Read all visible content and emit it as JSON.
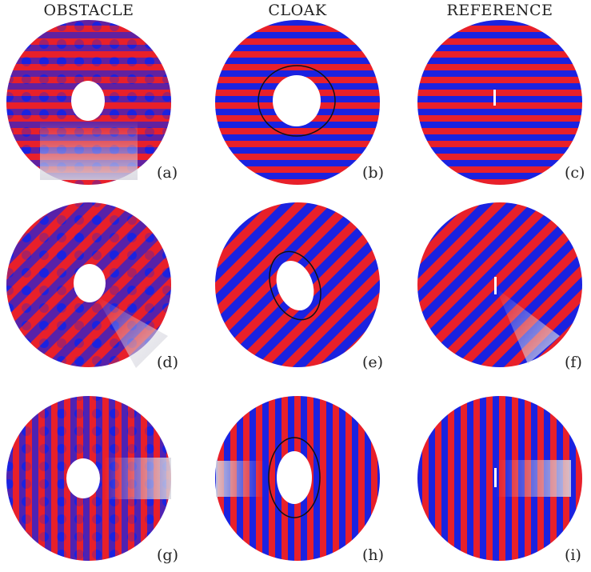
{
  "columns": [
    "OBSTACLE",
    "CLOAK",
    "REFERENCE"
  ],
  "colors": {
    "positive": "#e8202a",
    "negative": "#1a22e0",
    "neutral": "#d8d8e0",
    "outline": "#111111"
  },
  "panels": [
    {
      "label": "(a)",
      "column": "OBSTACLE",
      "wave": "horizontal"
    },
    {
      "label": "(b)",
      "column": "CLOAK",
      "wave": "horizontal"
    },
    {
      "label": "(c)",
      "column": "REFERENCE",
      "wave": "horizontal"
    },
    {
      "label": "(d)",
      "column": "OBSTACLE",
      "wave": "diagonal"
    },
    {
      "label": "(e)",
      "column": "CLOAK",
      "wave": "diagonal"
    },
    {
      "label": "(f)",
      "column": "REFERENCE",
      "wave": "diagonal"
    },
    {
      "label": "(g)",
      "column": "OBSTACLE",
      "wave": "vertical"
    },
    {
      "label": "(h)",
      "column": "CLOAK",
      "wave": "vertical"
    },
    {
      "label": "(i)",
      "column": "REFERENCE",
      "wave": "vertical"
    }
  ]
}
